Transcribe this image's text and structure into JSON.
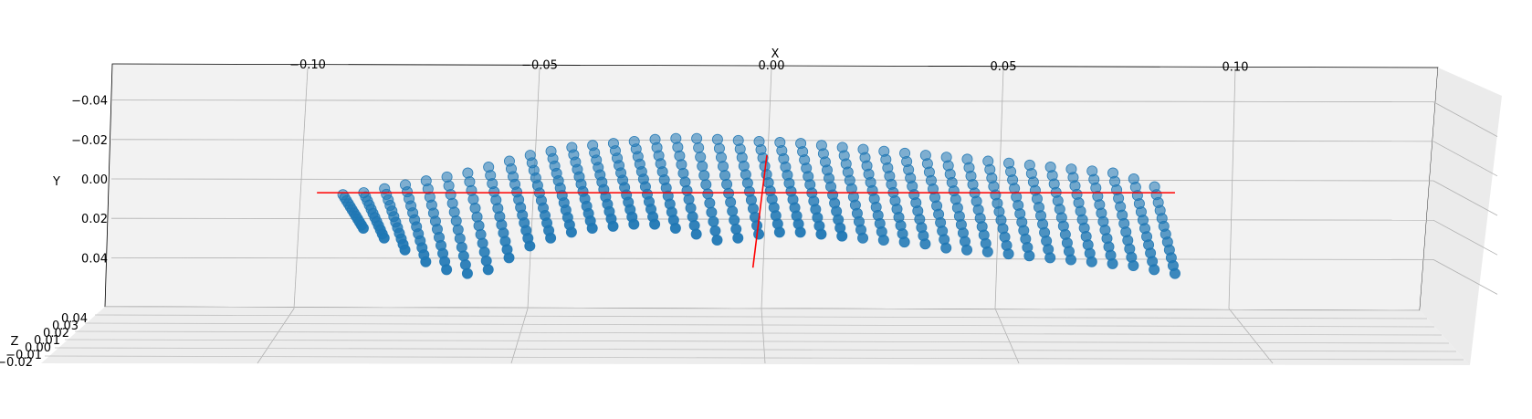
{
  "chart_data": {
    "type": "scatter",
    "projection": "3d",
    "title": "",
    "xlabel": "X",
    "ylabel": "Y",
    "zlabel": "Z",
    "x_ticks": [
      "−0.10",
      "−0.05",
      "0.00",
      "0.05",
      "0.10"
    ],
    "y_ticks": [
      "−0.04",
      "−0.02",
      "0.00",
      "0.02",
      "0.04"
    ],
    "z_ticks": [
      "0.04",
      "0.03",
      "0.02",
      "0.01",
      "0.00",
      "−0.01",
      "−0.02"
    ],
    "xlim": [
      -0.125,
      0.125
    ],
    "ylim": [
      -0.05,
      0.06
    ],
    "grid": true,
    "marker_color": "#1f77b4",
    "axis_line_color": "#ff0000",
    "series": [
      {
        "grid_shape": [
          40,
          12
        ],
        "x_range": [
          -0.09,
          0.085
        ],
        "top_edge_y": [
          0.008,
          0.007,
          0.005,
          0.003,
          0.001,
          -0.001,
          -0.003,
          -0.006,
          -0.009,
          -0.012,
          -0.014,
          -0.016,
          -0.017,
          -0.018,
          -0.019,
          -0.02,
          -0.0205,
          -0.0205,
          -0.02,
          -0.0195,
          -0.019,
          -0.0185,
          -0.018,
          -0.017,
          -0.016,
          -0.015,
          -0.014,
          -0.013,
          -0.012,
          -0.011,
          -0.01,
          -0.009,
          -0.008,
          -0.007,
          -0.006,
          -0.005,
          -0.004,
          -0.003,
          0.0,
          0.004
        ],
        "bottom_edge_y": [
          0.025,
          0.03,
          0.036,
          0.042,
          0.046,
          0.048,
          0.046,
          0.04,
          0.034,
          0.03,
          0.027,
          0.025,
          0.024,
          0.023,
          0.023,
          0.025,
          0.028,
          0.031,
          0.03,
          0.028,
          0.027,
          0.027,
          0.028,
          0.029,
          0.03,
          0.031,
          0.032,
          0.033,
          0.035,
          0.036,
          0.037,
          0.038,
          0.039,
          0.04,
          0.041,
          0.042,
          0.043,
          0.044,
          0.046,
          0.048
        ]
      }
    ],
    "reference_axes": [
      {
        "name": "x-axis-line",
        "from": [
          -0.098,
          0.007
        ],
        "to": [
          0.087,
          0.007
        ]
      },
      {
        "name": "y-axis-line",
        "from": [
          -0.001,
          -0.012
        ],
        "to": [
          -0.004,
          0.045
        ]
      }
    ]
  }
}
